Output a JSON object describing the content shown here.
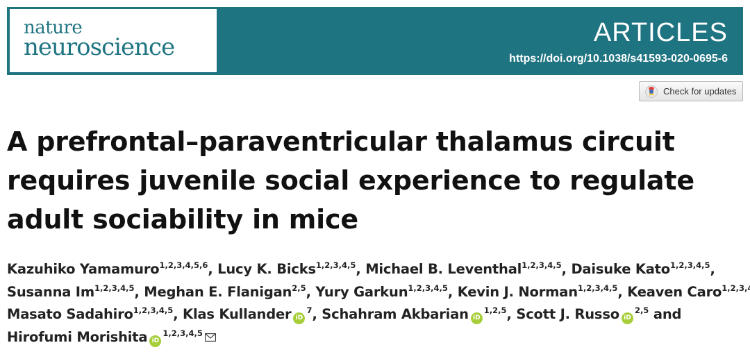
{
  "header": {
    "logo_line1": "nature",
    "logo_line2": "neuroscience",
    "section": "ARTICLES",
    "doi": "https://doi.org/10.1038/s41593-020-0695-6"
  },
  "check_updates": {
    "label": "Check for updates",
    "icon": "crossmark-icon"
  },
  "article": {
    "title_lines": [
      "A prefrontal–paraventricular thalamus circuit",
      "requires juvenile social experience to regulate",
      "adult sociability in mice"
    ],
    "authors": [
      {
        "name": "Kazuhiko Yamamuro",
        "affil": "1,2,3,4,5,6",
        "orcid": false,
        "sep": ", "
      },
      {
        "name": "Lucy K. Bicks",
        "affil": "1,2,3,4,5",
        "orcid": false,
        "sep": ", "
      },
      {
        "name": "Michael B. Leventhal",
        "affil": "1,2,3,4,5",
        "orcid": false,
        "sep": ", "
      },
      {
        "name": "Daisuke Kato",
        "affil": "1,2,3,4,5",
        "orcid": false,
        "sep": ","
      },
      {
        "name": "Susanna Im",
        "affil": "1,2,3,4,5",
        "orcid": false,
        "sep": ", "
      },
      {
        "name": "Meghan E. Flanigan",
        "affil": "2,5",
        "orcid": false,
        "sep": ", "
      },
      {
        "name": "Yury Garkun",
        "affil": "1,2,3,4,5",
        "orcid": false,
        "sep": ", "
      },
      {
        "name": "Kevin J. Norman",
        "affil": "1,2,3,4,5",
        "orcid": false,
        "sep": ", "
      },
      {
        "name": "Keaven Caro",
        "affil": "1,2,3,4,5",
        "orcid": false,
        "sep": ","
      },
      {
        "name": "Masato Sadahiro",
        "affil": "1,2,3,4,5",
        "orcid": false,
        "sep": ", "
      },
      {
        "name": "Klas Kullander",
        "affil": "7",
        "orcid": true,
        "sep": ", "
      },
      {
        "name": "Schahram Akbarian",
        "affil": "1,2,5",
        "orcid": true,
        "sep": ", "
      },
      {
        "name": "Scott J. Russo",
        "affil": "2,5",
        "orcid": true,
        "sep": " and"
      },
      {
        "name": "Hirofumi Morishita",
        "affil": "1,2,3,4,5",
        "orcid": true,
        "sep": "",
        "corresponding": true
      }
    ],
    "author_line_breaks": [
      4,
      9,
      13,
      14
    ]
  },
  "colors": {
    "brand": "#1f7482",
    "orcid": "#a6ce39"
  }
}
